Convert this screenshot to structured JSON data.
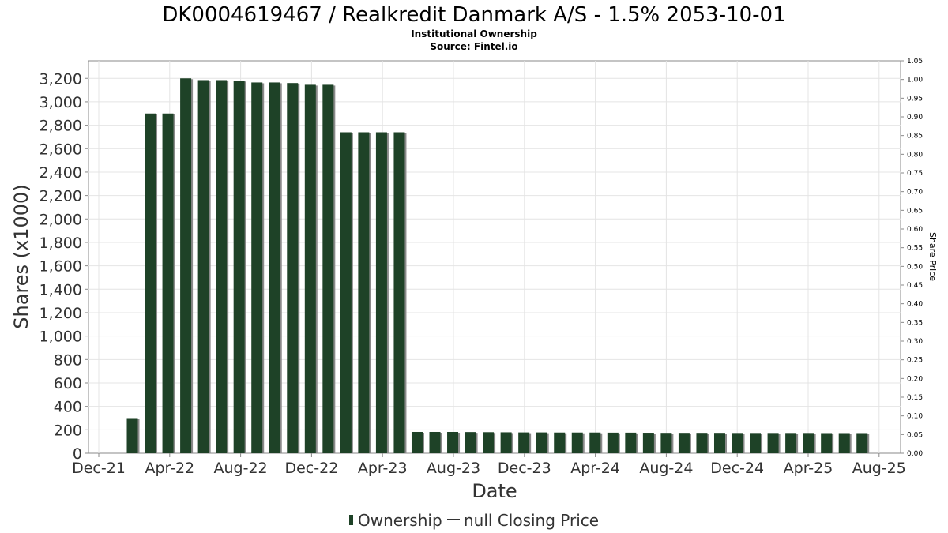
{
  "chart_data": {
    "type": "bar",
    "title": "DK0004619467 / Realkredit Danmark A/S - 1.5% 2053-10-01",
    "subtitle": "Institutional Ownership",
    "source": "Source: Fintel.io",
    "xlabel": "Date",
    "ylabel": "Shares (x1000)",
    "y2label": "Share Price",
    "ylim": [
      0,
      3350
    ],
    "y2lim": [
      0,
      1.05
    ],
    "yticks": [
      "0",
      "200",
      "400",
      "600",
      "800",
      "1,000",
      "1,200",
      "1,400",
      "1,600",
      "1,800",
      "2,000",
      "2,200",
      "2,400",
      "2,600",
      "2,800",
      "3,000",
      "3,200"
    ],
    "ytick_values": [
      0,
      200,
      400,
      600,
      800,
      1000,
      1200,
      1400,
      1600,
      1800,
      2000,
      2200,
      2400,
      2600,
      2800,
      3000,
      3200
    ],
    "y2ticks": [
      "0.00",
      "0.05",
      "0.10",
      "0.15",
      "0.20",
      "0.25",
      "0.30",
      "0.35",
      "0.40",
      "0.45",
      "0.50",
      "0.55",
      "0.60",
      "0.65",
      "0.70",
      "0.75",
      "0.80",
      "0.85",
      "0.90",
      "0.95",
      "1.00",
      "1.05"
    ],
    "xticks": [
      "Dec-21",
      "Apr-22",
      "Aug-22",
      "Dec-22",
      "Apr-23",
      "Aug-23",
      "Dec-23",
      "Apr-24",
      "Aug-24",
      "Dec-24",
      "Apr-25",
      "Aug-25"
    ],
    "grid": true,
    "legend_position": "bottom-center",
    "series": [
      {
        "name": "Ownership",
        "color": "#1e4227",
        "values": [
          300,
          2900,
          2900,
          3200,
          3185,
          3185,
          3180,
          3165,
          3165,
          3160,
          3145,
          3145,
          2740,
          2740,
          2740,
          2740,
          182,
          182,
          182,
          181,
          180,
          179,
          178,
          178,
          177,
          177,
          177,
          176,
          176,
          175,
          174,
          174,
          174,
          174,
          173,
          173,
          173,
          173,
          173,
          172,
          172,
          172
        ]
      },
      {
        "name": "null Closing Price",
        "color": "#333333",
        "values": []
      }
    ]
  }
}
